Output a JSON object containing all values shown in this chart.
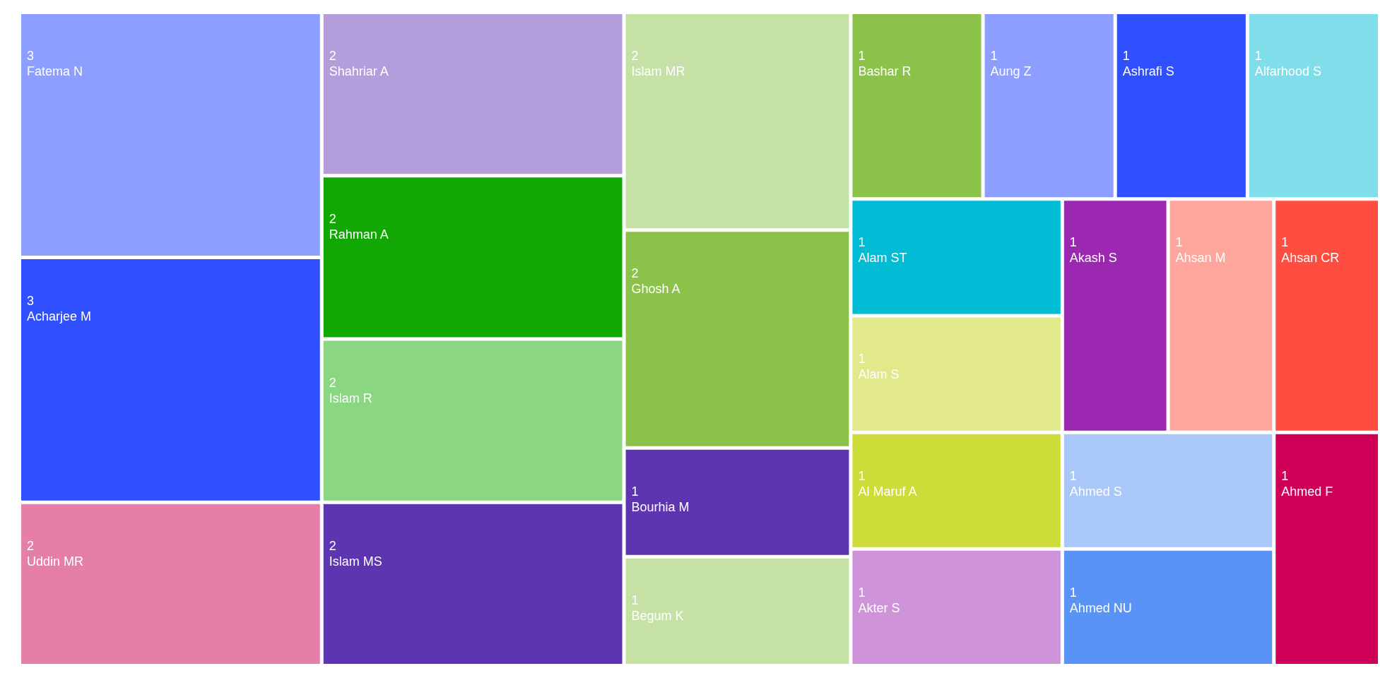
{
  "chart_data": {
    "type": "other",
    "data_labels": true,
    "categories": [
      "Acharjee M",
      "Fatema N",
      "Ghosh A",
      "Islam MR",
      "Islam MS",
      "Islam R",
      "Rahman A",
      "Shahriar A",
      "Uddin MR",
      "Ahmed F",
      "Ahmed NU",
      "Ahmed S",
      "Ahsan CR",
      "Ahsan M",
      "Akash S",
      "Akter S",
      "Al Maruf A",
      "Alam S",
      "Alam ST",
      "Alfarhood S",
      "Ashrafi S",
      "Aung Z",
      "Bashar R",
      "Begum K",
      "Bourhia M"
    ],
    "values": [
      3,
      3,
      2,
      2,
      2,
      2,
      2,
      2,
      2,
      1,
      1,
      1,
      1,
      1,
      1,
      1,
      1,
      1,
      1,
      1,
      1,
      1,
      1,
      1,
      1
    ],
    "colors": [
      "#304ffe",
      "#8c9eff",
      "#8bc34a",
      "#c5e1a5",
      "#5e35b1",
      "#8bd683",
      "#12a804",
      "#b39ddb",
      "#e67fa8",
      "#d00058",
      "#5893f5",
      "#aac7fa",
      "#ff4d3f",
      "#ffa69c",
      "#9c27b0",
      "#ce93d8",
      "#cddc39",
      "#e2e98a",
      "#00bcd4",
      "#80deea",
      "#304ffe",
      "#8c9eff",
      "#8bc34a",
      "#c5e1a5",
      "#5e35b1"
    ]
  }
}
